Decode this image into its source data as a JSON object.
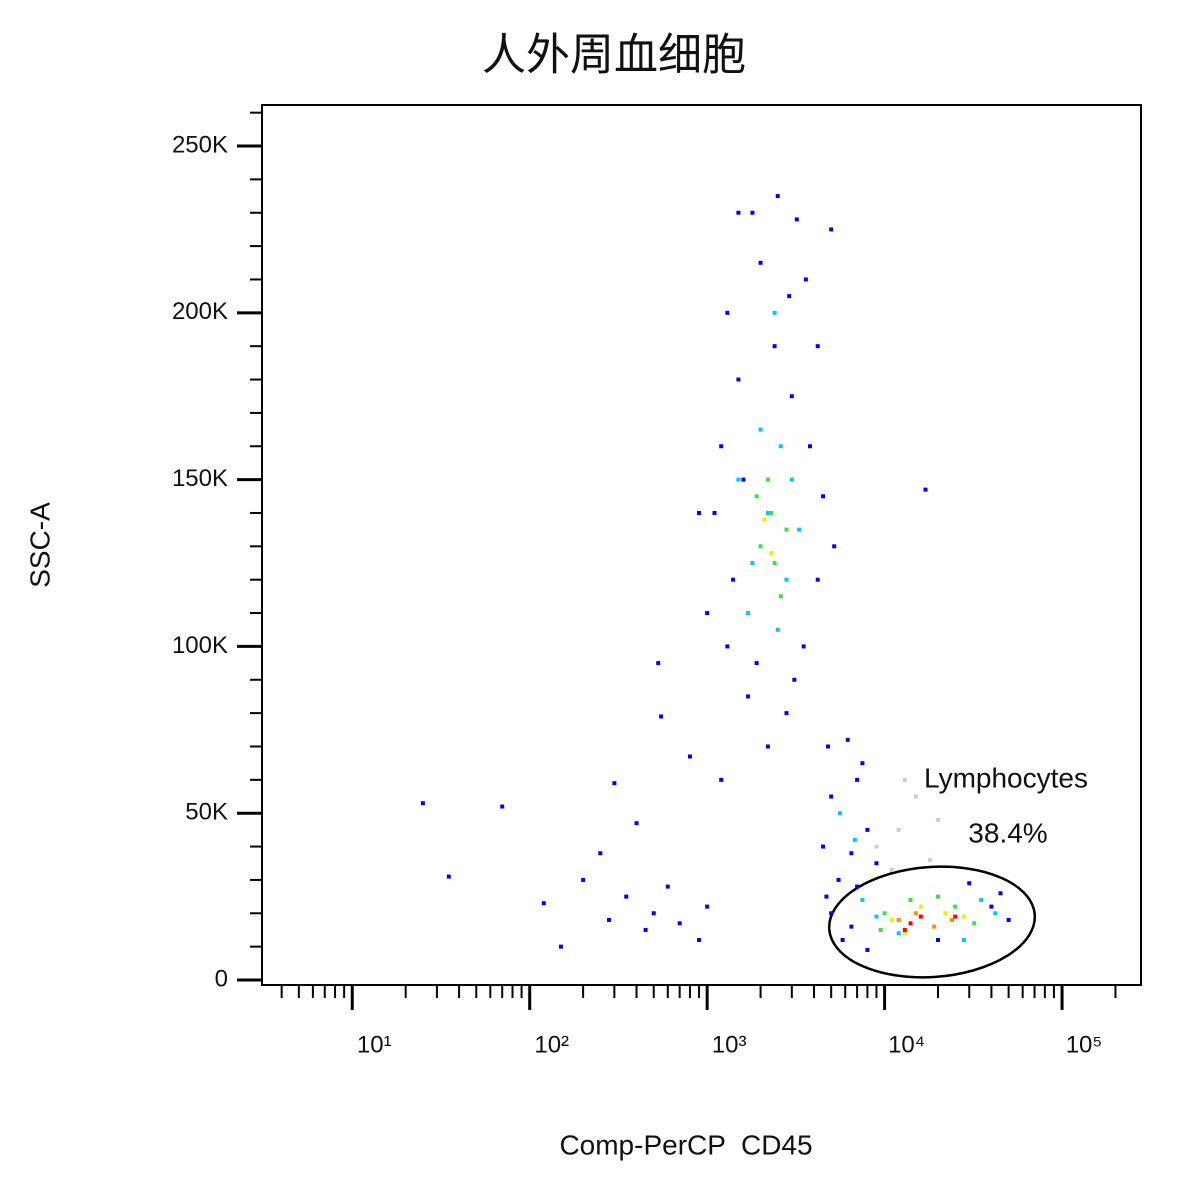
{
  "chart_data": {
    "type": "scatter",
    "title": "人外周血细胞",
    "xlabel": "Comp-PerCP  CD45",
    "ylabel": "SSC-A",
    "xscale": "log",
    "xlim": [
      3.1,
      278600
    ],
    "ylim": [
      -1500,
      262300
    ],
    "xticks": [
      {
        "value": 10,
        "label": "10¹"
      },
      {
        "value": 100,
        "label": "10²"
      },
      {
        "value": 1000,
        "label": "10³"
      },
      {
        "value": 10000,
        "label": "10⁴"
      },
      {
        "value": 100000,
        "label": "10⁵"
      }
    ],
    "xminorticks": [
      4,
      5,
      6,
      7,
      8,
      9,
      20,
      30,
      40,
      50,
      60,
      70,
      80,
      90,
      200,
      300,
      400,
      500,
      600,
      700,
      800,
      900,
      2000,
      3000,
      4000,
      5000,
      6000,
      7000,
      8000,
      9000,
      20000,
      30000,
      40000,
      50000,
      60000,
      70000,
      80000,
      90000,
      200000
    ],
    "yticks": [
      0,
      {
        "value": 50000,
        "label": "50K"
      },
      {
        "value": 100000,
        "label": "100K"
      },
      {
        "value": 150000,
        "label": "150K"
      },
      {
        "value": 200000,
        "label": "200K"
      },
      {
        "value": 250000,
        "label": "250K"
      }
    ],
    "yminorticks": [
      10000,
      20000,
      30000,
      40000,
      60000,
      70000,
      80000,
      90000,
      110000,
      120000,
      130000,
      140000,
      160000,
      170000,
      180000,
      190000,
      210000,
      220000,
      230000,
      240000,
      260000
    ],
    "gate_name": "Lymphocytes",
    "gate_percent": "38.4%",
    "series": [
      {
        "color": "#0000ff",
        "x": [
          1300,
          1800,
          2500,
          3200,
          1500,
          4200,
          1200,
          3800,
          1100,
          4500,
          1400,
          4200,
          1300,
          3500,
          1700,
          2800,
          2200,
          900,
          1000,
          5200,
          2000,
          2900,
          3600,
          1600,
          3000,
          2400,
          1900,
          3100,
          1500,
          5000,
          25,
          70,
          35,
          120,
          150,
          300,
          400,
          200,
          280,
          350,
          500,
          600,
          450,
          250,
          700,
          1000,
          900,
          530,
          550,
          800,
          1200,
          4800,
          6200,
          7500,
          5000,
          8000,
          4500,
          6500,
          5500,
          9000,
          4700,
          7000,
          5000,
          5800,
          7000,
          40000,
          50000,
          30000,
          8000,
          20000,
          45000,
          6500,
          17000
        ],
        "values": [
          200000,
          230000,
          235000,
          228000,
          180000,
          190000,
          160000,
          160000,
          140000,
          145000,
          120000,
          120000,
          100000,
          100000,
          85000,
          80000,
          70000,
          140000,
          110000,
          130000,
          215000,
          205000,
          210000,
          150000,
          175000,
          190000,
          95000,
          90000,
          230000,
          225000,
          53000,
          52000,
          31000,
          23000,
          10000,
          59000,
          47000,
          30000,
          18000,
          25000,
          20000,
          28000,
          15000,
          38000,
          17000,
          22000,
          12000,
          95000,
          79000,
          67000,
          60000,
          70000,
          72000,
          65000,
          55000,
          45000,
          40000,
          38000,
          30000,
          35000,
          25000,
          60000,
          20000,
          12000,
          28000,
          22000,
          18000,
          29000,
          9000,
          12000,
          26000,
          16000,
          147000
        ]
      },
      {
        "color": "#c8c8f0",
        "x": [
          9000,
          12000,
          15000,
          11000,
          18000,
          20000,
          13000
        ],
        "values": [
          40000,
          45000,
          55000,
          33000,
          36000,
          48000,
          60000
        ]
      },
      {
        "color": "#00c8ff",
        "x": [
          1500,
          2200,
          2800,
          1800,
          3300,
          2500,
          2000,
          3000,
          1700,
          2400,
          2600,
          5600,
          6800,
          7500,
          35000,
          12000,
          28000,
          9000,
          42000
        ],
        "values": [
          150000,
          140000,
          120000,
          125000,
          135000,
          105000,
          165000,
          150000,
          110000,
          200000,
          160000,
          50000,
          42000,
          24000,
          24000,
          14000,
          12000,
          19000,
          20000
        ]
      },
      {
        "color": "#40e040",
        "x": [
          2000,
          2400,
          2200,
          2800,
          1900,
          2600,
          2300,
          10000,
          14000,
          25000,
          32000,
          9500,
          20000
        ],
        "values": [
          130000,
          125000,
          150000,
          135000,
          145000,
          115000,
          140000,
          20000,
          24000,
          22000,
          17000,
          15000,
          25000
        ]
      },
      {
        "color": "#f0f000",
        "x": [
          2300,
          2100,
          11000,
          16000,
          22000,
          28000,
          13000
        ],
        "values": [
          128000,
          138000,
          18000,
          22000,
          20000,
          19000,
          14000
        ]
      },
      {
        "color": "#ff9000",
        "x": [
          12000,
          15000,
          24000,
          19000
        ],
        "values": [
          18000,
          20000,
          18000,
          16000
        ]
      },
      {
        "color": "#ff0000",
        "x": [
          14000,
          13000,
          25000,
          16000
        ],
        "values": [
          17000,
          15000,
          19000,
          19000
        ]
      }
    ]
  }
}
